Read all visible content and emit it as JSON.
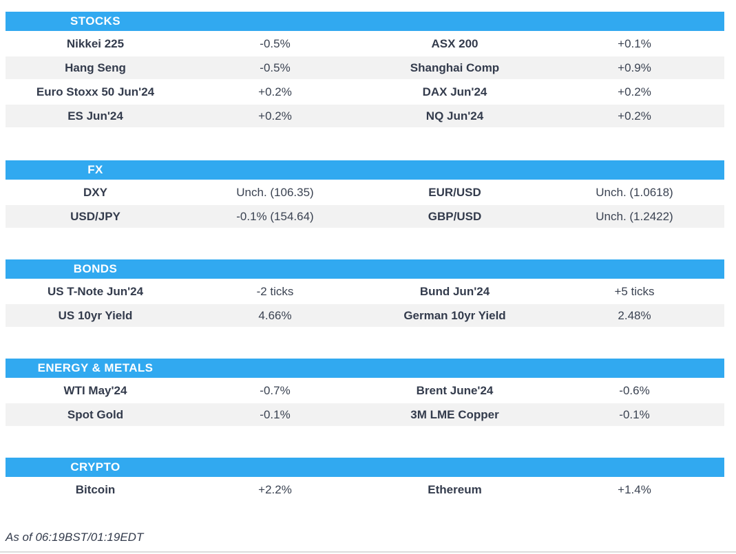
{
  "colors": {
    "accent_blue": "#31a9f0",
    "alt_row_gray": "#f2f2f2",
    "text_dark": "#333b4c",
    "bottom_rule_gray": "#dcdcdc"
  },
  "sections": [
    {
      "title": "STOCKS",
      "rows": [
        {
          "l1": "Nikkei 225",
          "v1": "-0.5%",
          "l2": "ASX 200",
          "v2": "+0.1%"
        },
        {
          "l1": "Hang Seng",
          "v1": "-0.5%",
          "l2": "Shanghai Comp",
          "v2": "+0.9%"
        },
        {
          "l1": "Euro Stoxx 50 Jun'24",
          "v1": "+0.2%",
          "l2": "DAX Jun'24",
          "v2": "+0.2%"
        },
        {
          "l1": "ES Jun'24",
          "v1": "+0.2%",
          "l2": "NQ Jun'24",
          "v2": "+0.2%"
        }
      ]
    },
    {
      "title": "FX",
      "rows": [
        {
          "l1": "DXY",
          "v1": "Unch. (106.35)",
          "l2": "EUR/USD",
          "v2": "Unch. (1.0618)"
        },
        {
          "l1": "USD/JPY",
          "v1": "-0.1% (154.64)",
          "l2": "GBP/USD",
          "v2": "Unch. (1.2422)"
        }
      ]
    },
    {
      "title": "BONDS",
      "rows": [
        {
          "l1": "US T-Note Jun'24",
          "v1": "-2 ticks",
          "l2": "Bund Jun'24",
          "v2": "+5 ticks"
        },
        {
          "l1": "US 10yr Yield",
          "v1": "4.66%",
          "l2": "German 10yr Yield",
          "v2": "2.48%"
        }
      ]
    },
    {
      "title": "ENERGY & METALS",
      "rows": [
        {
          "l1": "WTI May'24",
          "v1": "-0.7%",
          "l2": "Brent June'24",
          "v2": "-0.6%"
        },
        {
          "l1": "Spot Gold",
          "v1": "-0.1%",
          "l2": "3M LME Copper",
          "v2": "-0.1%"
        }
      ]
    },
    {
      "title": "CRYPTO",
      "rows": [
        {
          "l1": "Bitcoin",
          "v1": "+2.2%",
          "l2": "Ethereum",
          "v2": "+1.4%"
        }
      ]
    }
  ],
  "footer": {
    "as_of": "As of 06:19BST/01:19EDT"
  }
}
